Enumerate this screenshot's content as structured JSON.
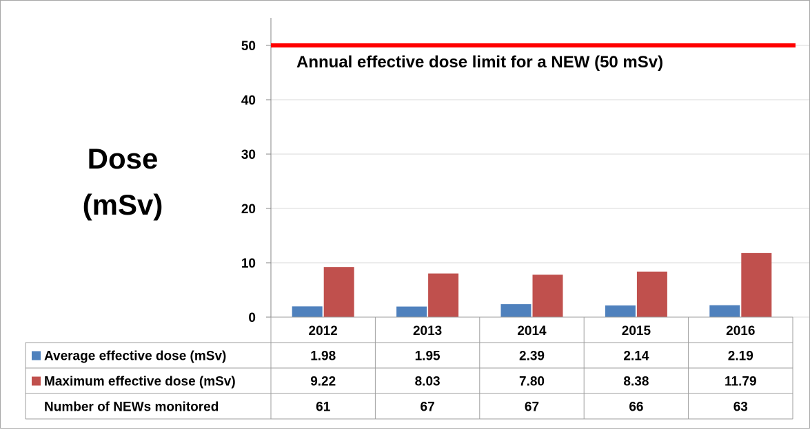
{
  "colors": {
    "average": "#4F81BD",
    "maximum": "#C0504D",
    "limit_line": "#FF0000",
    "grid": "#D9D9D9",
    "border": "#A6A6A6"
  },
  "y_axis_title_line1": "Dose",
  "y_axis_title_line2": "(mSv)",
  "limit_annotation": "Annual effective dose limit for a NEW (50 mSv)",
  "table": {
    "rows": [
      {
        "label": "Average effective dose (mSv)",
        "legend_key": "average",
        "cells": [
          "1.98",
          "1.95",
          "2.39",
          "2.14",
          "2.19"
        ]
      },
      {
        "label": "Maximum effective dose (mSv)",
        "legend_key": "maximum",
        "cells": [
          "9.22",
          "8.03",
          "7.80",
          "8.38",
          "11.79"
        ]
      },
      {
        "label": "Number of NEWs monitored",
        "legend_key": "",
        "cells": [
          "61",
          "67",
          "67",
          "66",
          "63"
        ]
      }
    ]
  },
  "chart_data": {
    "type": "bar",
    "categories": [
      "2012",
      "2013",
      "2014",
      "2015",
      "2016"
    ],
    "series": [
      {
        "name": "Average effective dose (mSv)",
        "values": [
          1.98,
          1.95,
          2.39,
          2.14,
          2.19
        ]
      },
      {
        "name": "Maximum effective dose (mSv)",
        "values": [
          9.22,
          8.03,
          7.8,
          8.38,
          11.79
        ]
      }
    ],
    "reference_line": {
      "label": "Annual effective dose limit for a NEW (50 mSv)",
      "value": 50
    },
    "ylabel": "Dose (mSv)",
    "xlabel": "",
    "title": "",
    "ylim": [
      0,
      55
    ],
    "yticks": [
      0,
      10,
      20,
      30,
      40,
      50
    ],
    "grid": true,
    "legend_placement": "data table below chart",
    "data_table_rows": [
      "Average effective dose (mSv)",
      "Maximum effective dose (mSv)",
      "Number of NEWs monitored"
    ]
  }
}
